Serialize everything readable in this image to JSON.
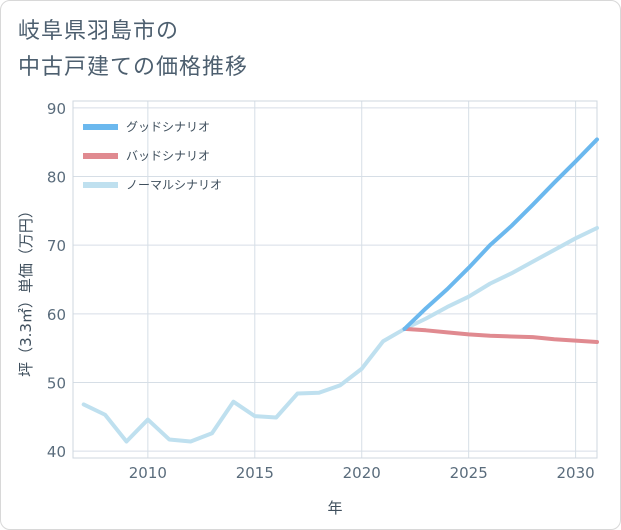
{
  "title_lines": [
    "岐阜県羽島市の",
    "中古戸建ての価格推移"
  ],
  "chart_data": {
    "type": "line",
    "xlabel": "年",
    "ylabel": "坪（3.3㎡）単価（万円）",
    "xlim": [
      2006.5,
      2031
    ],
    "ylim": [
      39,
      91
    ],
    "x_ticks": [
      2010,
      2015,
      2020,
      2025,
      2030
    ],
    "y_ticks": [
      40,
      50,
      60,
      70,
      80,
      90
    ],
    "grid": true,
    "legend_position": "top-left",
    "series": [
      {
        "name": "グッドシナリオ",
        "color": "#6bb8ee",
        "x": [
          2022,
          2023,
          2024,
          2025,
          2026,
          2027,
          2028,
          2029,
          2030,
          2031
        ],
        "y": [
          57.8,
          60.8,
          63.6,
          66.7,
          70.0,
          72.8,
          75.9,
          79.1,
          82.2,
          85.4
        ]
      },
      {
        "name": "バッドシナリオ",
        "color": "#e08a90",
        "x": [
          2022,
          2023,
          2024,
          2025,
          2026,
          2027,
          2028,
          2029,
          2030,
          2031
        ],
        "y": [
          57.8,
          57.6,
          57.3,
          57.0,
          56.8,
          56.7,
          56.6,
          56.3,
          56.1,
          55.9
        ]
      },
      {
        "name": "ノーマルシナリオ",
        "color": "#bfe0ef",
        "x": [
          2007,
          2008,
          2009,
          2010,
          2011,
          2012,
          2013,
          2014,
          2015,
          2016,
          2017,
          2018,
          2019,
          2020,
          2021,
          2022,
          2023,
          2024,
          2025,
          2026,
          2027,
          2028,
          2029,
          2030,
          2031
        ],
        "y": [
          46.8,
          45.3,
          41.4,
          44.6,
          41.7,
          41.4,
          42.6,
          47.2,
          45.1,
          44.9,
          48.4,
          48.5,
          49.6,
          52.0,
          56.0,
          57.8,
          59.3,
          61.0,
          62.5,
          64.4,
          65.9,
          67.6,
          69.3,
          71.0,
          72.5
        ]
      }
    ]
  }
}
